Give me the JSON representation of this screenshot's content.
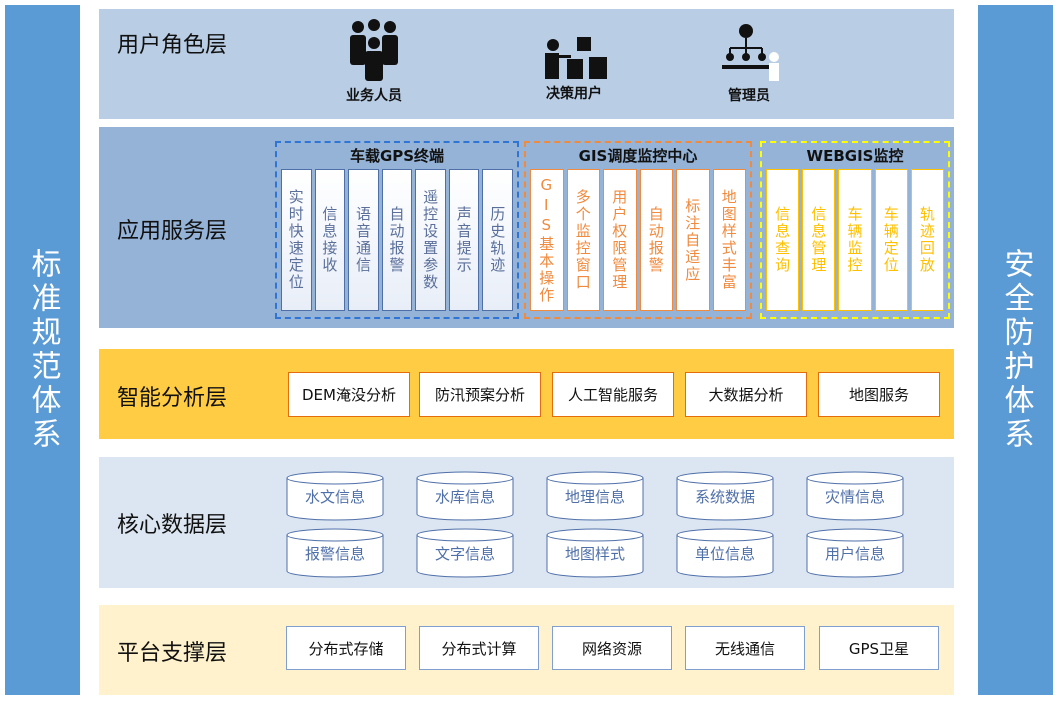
{
  "left_bar": "标准规范体系",
  "right_bar": "安全防护体系",
  "user_layer": {
    "title": "用户角色层",
    "roles": [
      {
        "label": "业务人员",
        "icon": "business-people-icon"
      },
      {
        "label": "决策用户",
        "icon": "decision-user-icon"
      },
      {
        "label": "管理员",
        "icon": "admin-icon"
      }
    ]
  },
  "app_layer": {
    "title": "应用服务层",
    "groups": [
      {
        "title": "车载GPS终端",
        "color": "#2e75d6",
        "items": [
          "实时快速定位",
          "信息接收",
          "语音通信",
          "自动报警",
          "遥控设置参数",
          "声音提示",
          "历史轨迹"
        ]
      },
      {
        "title": "GIS调度监控中心",
        "color": "#f08a3e",
        "items": [
          "GIS基本操作",
          "多个监控窗口",
          "用户权限管理",
          "自动报警",
          "标注自适应",
          "地图样式丰富"
        ]
      },
      {
        "title": "WEBGIS监控",
        "color": "#ffff00",
        "items": [
          "信息查询",
          "信息管理",
          "车辆监控",
          "车辆定位",
          "轨迹回放"
        ]
      }
    ]
  },
  "analysis_layer": {
    "title": "智能分析层",
    "items": [
      "DEM淹没分析",
      "防汛预案分析",
      "人工智能服务",
      "大数据分析",
      "地图服务"
    ]
  },
  "data_layer": {
    "title": "核心数据层",
    "items": [
      "水文信息",
      "水库信息",
      "地理信息",
      "系统数据",
      "灾情信息",
      "报警信息",
      "文字信息",
      "地图样式",
      "单位信息",
      "用户信息"
    ]
  },
  "platform_layer": {
    "title": "平台支撑层",
    "items": [
      "分布式存储",
      "分布式计算",
      "网络资源",
      "无线通信",
      "GPS卫星"
    ]
  }
}
